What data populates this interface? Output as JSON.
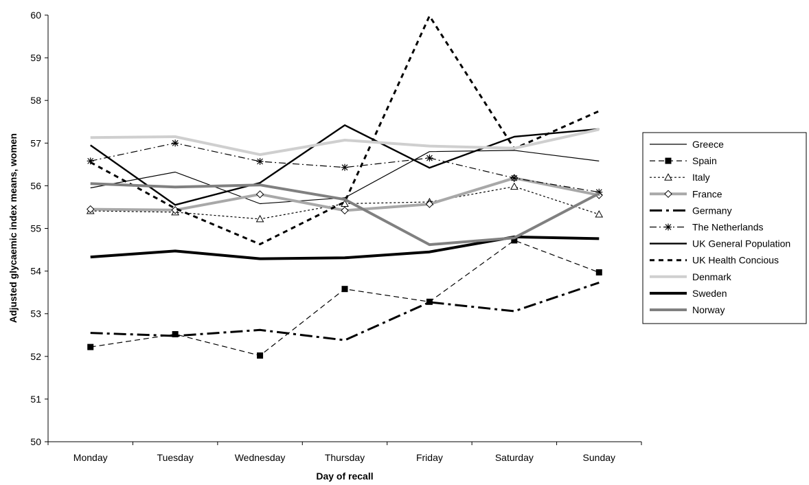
{
  "chart_data": {
    "type": "line",
    "xlabel": "Day of recall",
    "ylabel": "Adjusted glycaemic index means, women",
    "categories": [
      "Monday",
      "Tuesday",
      "Wednesday",
      "Thursday",
      "Friday",
      "Saturday",
      "Sunday"
    ],
    "ylim": [
      50,
      60
    ],
    "yticks": [
      50,
      51,
      52,
      53,
      54,
      55,
      56,
      57,
      58,
      59,
      60
    ],
    "grid": false,
    "legend_position": "right",
    "series": [
      {
        "name": "Greece",
        "values": [
          55.95,
          56.32,
          55.58,
          55.72,
          56.8,
          56.83,
          56.58
        ],
        "color": "#000000",
        "line": "solid",
        "marker": "none"
      },
      {
        "name": "Spain",
        "values": [
          52.22,
          52.52,
          52.02,
          53.58,
          53.28,
          54.72,
          53.97
        ],
        "color": "#000000",
        "line": "dashed",
        "marker": "square"
      },
      {
        "name": "Italy",
        "values": [
          55.41,
          55.38,
          55.22,
          55.58,
          55.62,
          55.98,
          55.33
        ],
        "color": "#000000",
        "line": "dotted",
        "marker": "triangle"
      },
      {
        "name": "France",
        "values": [
          55.45,
          55.43,
          55.8,
          55.42,
          55.57,
          56.18,
          55.78
        ],
        "color": "#a8a8a8",
        "line": "solid-thick",
        "marker": "diamond"
      },
      {
        "name": "Germany",
        "values": [
          52.55,
          52.48,
          52.62,
          52.38,
          53.27,
          53.06,
          53.73
        ],
        "color": "#000000",
        "line": "dashdot-thick",
        "marker": "none"
      },
      {
        "name": "The Netherlands",
        "values": [
          56.58,
          57.0,
          56.57,
          56.43,
          56.65,
          56.18,
          55.85
        ],
        "color": "#000000",
        "line": "dashdot",
        "marker": "star"
      },
      {
        "name": "UK General Population",
        "values": [
          56.95,
          55.55,
          56.07,
          57.42,
          56.42,
          57.15,
          57.33
        ],
        "color": "#000000",
        "line": "solid-medium",
        "marker": "none"
      },
      {
        "name": "UK Health Concious",
        "values": [
          56.55,
          55.47,
          54.63,
          55.62,
          59.98,
          56.87,
          57.75
        ],
        "color": "#000000",
        "line": "dashed-thick",
        "marker": "none"
      },
      {
        "name": "Denmark",
        "values": [
          57.13,
          57.15,
          56.73,
          57.07,
          56.93,
          56.88,
          57.32
        ],
        "color": "#cfcfcf",
        "line": "solid-thick",
        "marker": "none"
      },
      {
        "name": "Sweden",
        "values": [
          54.33,
          54.47,
          54.29,
          54.31,
          54.45,
          54.8,
          54.76
        ],
        "color": "#000000",
        "line": "solid-thick",
        "marker": "none"
      },
      {
        "name": "Norway",
        "values": [
          56.05,
          55.97,
          56.02,
          55.68,
          54.62,
          54.78,
          55.82
        ],
        "color": "#808080",
        "line": "solid-thick",
        "marker": "none"
      }
    ]
  }
}
